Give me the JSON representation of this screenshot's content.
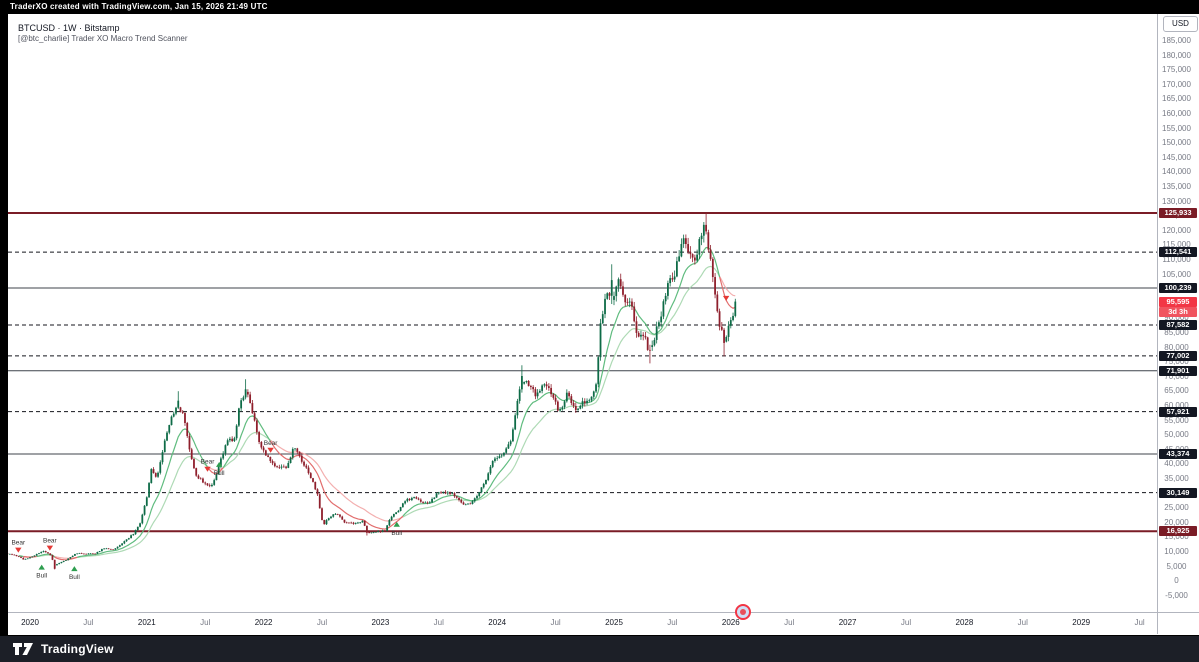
{
  "header": {
    "attribution": "TraderXO created with TradingView.com, Jan 15, 2026 21:49 UTC"
  },
  "legend": {
    "symbol_line": "BTCUSD · 1W · Bitstamp",
    "indicator_line": "[@btc_charlie] Trader XO Macro Trend Scanner"
  },
  "price_axis": {
    "currency_button": "USD",
    "max": 185000,
    "min": -10000,
    "step": 5000
  },
  "time_axis": {
    "labels": [
      {
        "text": "2020",
        "major": true
      },
      {
        "text": "Jul",
        "major": false
      },
      {
        "text": "2021",
        "major": true
      },
      {
        "text": "Jul",
        "major": false
      },
      {
        "text": "2022",
        "major": true
      },
      {
        "text": "Jul",
        "major": false
      },
      {
        "text": "2023",
        "major": true
      },
      {
        "text": "Jul",
        "major": false
      },
      {
        "text": "2024",
        "major": true
      },
      {
        "text": "Jul",
        "major": false
      },
      {
        "text": "2025",
        "major": true
      },
      {
        "text": "Jul",
        "major": false
      },
      {
        "text": "2026",
        "major": true
      },
      {
        "text": "Jul",
        "major": false
      },
      {
        "text": "2027",
        "major": true
      },
      {
        "text": "Jul",
        "major": false
      },
      {
        "text": "2028",
        "major": true
      },
      {
        "text": "Jul",
        "major": false
      },
      {
        "text": "2029",
        "major": true
      },
      {
        "text": "Jul",
        "major": false
      }
    ]
  },
  "footer": {
    "brand": "TradingView"
  },
  "chart_data": {
    "type": "candlestick",
    "symbol": "BTCUSD",
    "timeframe": "1W",
    "exchange": "Bitstamp",
    "indicator": "Trader XO Macro Trend Scanner",
    "ylim": [
      -10000,
      185000
    ],
    "xlim_years": [
      2019.73,
      2029.75
    ],
    "grid": false,
    "current_price": {
      "value": "95,595",
      "countdown": "3d 3h",
      "color": "#f23645"
    },
    "levels": [
      {
        "value": 125933,
        "label": "125,933",
        "style": "solid",
        "line_color": "#7a1c26",
        "width": 2,
        "chip_bg": "#7a1c26"
      },
      {
        "value": 112541,
        "label": "112,541",
        "style": "dashed",
        "line_color": "#14161c",
        "width": 1,
        "chip_bg": "#131722"
      },
      {
        "value": 100239,
        "label": "100,239",
        "style": "solid",
        "line_color": "#3f434b",
        "width": 1,
        "chip_bg": "#131722"
      },
      {
        "value": 87582,
        "label": "87,582",
        "style": "dashed",
        "line_color": "#14161c",
        "width": 1,
        "chip_bg": "#131722"
      },
      {
        "value": 77002,
        "label": "77,002",
        "style": "dashed",
        "line_color": "#14161c",
        "width": 1,
        "chip_bg": "#131722"
      },
      {
        "value": 71901,
        "label": "71,901",
        "style": "solid",
        "line_color": "#3f434b",
        "width": 1,
        "chip_bg": "#131722"
      },
      {
        "value": 57921,
        "label": "57,921",
        "style": "dashed",
        "line_color": "#14161c",
        "width": 1,
        "chip_bg": "#131722"
      },
      {
        "value": 43374,
        "label": "43,374",
        "style": "solid",
        "line_color": "#3f434b",
        "width": 1,
        "chip_bg": "#131722"
      },
      {
        "value": 30149,
        "label": "30,149",
        "style": "dashed",
        "line_color": "#14161c",
        "width": 1,
        "chip_bg": "#131722"
      },
      {
        "value": 16925,
        "label": "16,925",
        "style": "solid",
        "line_color": "#7a1c26",
        "width": 2,
        "chip_bg": "#7a1c26"
      }
    ],
    "anchors": [
      [
        2019.75,
        8150
      ],
      [
        2019.79,
        9400
      ],
      [
        2019.88,
        8600
      ],
      [
        2019.95,
        7200
      ],
      [
        2020.05,
        8900
      ],
      [
        2020.12,
        10150
      ],
      [
        2020.18,
        8600
      ],
      [
        2020.21,
        5300
      ],
      [
        2020.3,
        6900
      ],
      [
        2020.4,
        9400
      ],
      [
        2020.55,
        9150
      ],
      [
        2020.63,
        11000
      ],
      [
        2020.72,
        10700
      ],
      [
        2020.8,
        13100
      ],
      [
        2020.88,
        15900
      ],
      [
        2020.94,
        19100
      ],
      [
        2021.0,
        29000
      ],
      [
        2021.04,
        38000
      ],
      [
        2021.09,
        35500
      ],
      [
        2021.16,
        48500
      ],
      [
        2021.22,
        57500
      ],
      [
        2021.27,
        59000
      ],
      [
        2021.31,
        58000
      ],
      [
        2021.36,
        46000
      ],
      [
        2021.42,
        35600
      ],
      [
        2021.5,
        33500
      ],
      [
        2021.55,
        31600
      ],
      [
        2021.62,
        39500
      ],
      [
        2021.68,
        47200
      ],
      [
        2021.75,
        48900
      ],
      [
        2021.8,
        61500
      ],
      [
        2021.85,
        65000
      ],
      [
        2021.9,
        58000
      ],
      [
        2021.97,
        46300
      ],
      [
        2022.05,
        41500
      ],
      [
        2022.12,
        38300
      ],
      [
        2022.2,
        39200
      ],
      [
        2022.26,
        46200
      ],
      [
        2022.33,
        40500
      ],
      [
        2022.4,
        36000
      ],
      [
        2022.46,
        29500
      ],
      [
        2022.51,
        19000
      ],
      [
        2022.56,
        21600
      ],
      [
        2022.62,
        23300
      ],
      [
        2022.7,
        19800
      ],
      [
        2022.78,
        19500
      ],
      [
        2022.85,
        20500
      ],
      [
        2022.89,
        16300
      ],
      [
        2022.96,
        16800
      ],
      [
        2023.04,
        17100
      ],
      [
        2023.09,
        21800
      ],
      [
        2023.15,
        23500
      ],
      [
        2023.22,
        27800
      ],
      [
        2023.3,
        28400
      ],
      [
        2023.36,
        26900
      ],
      [
        2023.42,
        27100
      ],
      [
        2023.5,
        30400
      ],
      [
        2023.57,
        30200
      ],
      [
        2023.64,
        29200
      ],
      [
        2023.7,
        26100
      ],
      [
        2023.78,
        26600
      ],
      [
        2023.84,
        29900
      ],
      [
        2023.9,
        34200
      ],
      [
        2023.97,
        42000
      ],
      [
        2024.05,
        42800
      ],
      [
        2024.12,
        47800
      ],
      [
        2024.17,
        62000
      ],
      [
        2024.21,
        68500
      ],
      [
        2024.27,
        67200
      ],
      [
        2024.33,
        63800
      ],
      [
        2024.4,
        67000
      ],
      [
        2024.46,
        64900
      ],
      [
        2024.53,
        57300
      ],
      [
        2024.6,
        64600
      ],
      [
        2024.66,
        58400
      ],
      [
        2024.73,
        60800
      ],
      [
        2024.8,
        62500
      ],
      [
        2024.85,
        68400
      ],
      [
        2024.89,
        90600
      ],
      [
        2024.94,
        97900
      ],
      [
        2024.99,
        94200
      ],
      [
        2025.04,
        104500
      ],
      [
        2025.09,
        96500
      ],
      [
        2025.14,
        96100
      ],
      [
        2025.2,
        84300
      ],
      [
        2025.26,
        83900
      ],
      [
        2025.3,
        78400
      ],
      [
        2025.36,
        85100
      ],
      [
        2025.42,
        94300
      ],
      [
        2025.47,
        103200
      ],
      [
        2025.53,
        106000
      ],
      [
        2025.58,
        117300
      ],
      [
        2025.63,
        113800
      ],
      [
        2025.68,
        108900
      ],
      [
        2025.73,
        115200
      ],
      [
        2025.78,
        122500
      ],
      [
        2025.82,
        110900
      ],
      [
        2025.87,
        95800
      ],
      [
        2025.91,
        86400
      ],
      [
        2025.95,
        81200
      ],
      [
        2025.99,
        87600
      ],
      [
        2026.02,
        90400
      ],
      [
        2026.045,
        95595
      ]
    ],
    "forced_bars": [
      {
        "t": 2020.21,
        "low": 3858
      },
      {
        "t": 2021.27,
        "high": 64899
      },
      {
        "t": 2021.85,
        "high": 69000
      },
      {
        "t": 2022.89,
        "low": 15476
      },
      {
        "t": 2024.21,
        "high": 73794
      },
      {
        "t": 2024.99,
        "high": 108364
      },
      {
        "t": 2025.3,
        "low": 74420
      },
      {
        "t": 2025.78,
        "high": 125933
      },
      {
        "t": 2025.95,
        "low": 76822
      },
      {
        "t": 2026.045,
        "close": 95595
      }
    ],
    "signals": [
      {
        "t": 2019.9,
        "price": 10300,
        "type": "bear",
        "label": "Bear"
      },
      {
        "t": 2020.1,
        "price": 4800,
        "type": "bull",
        "label": "Bull"
      },
      {
        "t": 2020.17,
        "price": 11000,
        "type": "bear",
        "label": "Bear"
      },
      {
        "t": 2020.38,
        "price": 4300,
        "type": "bull",
        "label": "Bull"
      },
      {
        "t": 2021.52,
        "price": 38000,
        "type": "bear",
        "label": "Bear"
      },
      {
        "t": 2021.62,
        "price": 40000,
        "type": "bull",
        "label": "Bull"
      },
      {
        "t": 2022.06,
        "price": 44500,
        "type": "bear",
        "label": "Bear"
      },
      {
        "t": 2023.14,
        "price": 19500,
        "type": "bull",
        "label": "Bull"
      },
      {
        "t": 2025.96,
        "price": 96500,
        "type": "bear",
        "label": ""
      }
    ],
    "emas": {
      "fast": 12,
      "slow": 26
    },
    "colors": {
      "up": "#0e6b47",
      "down": "#8f1f2c",
      "ema_fast_bull": "#57b878",
      "ema_slow_bull": "#a5d6ad",
      "ema_fast_bear": "#e06666",
      "ema_slow_bear": "#f2a6a6",
      "bull_marker": "#2e9e4f",
      "bear_marker": "#e53935"
    }
  }
}
